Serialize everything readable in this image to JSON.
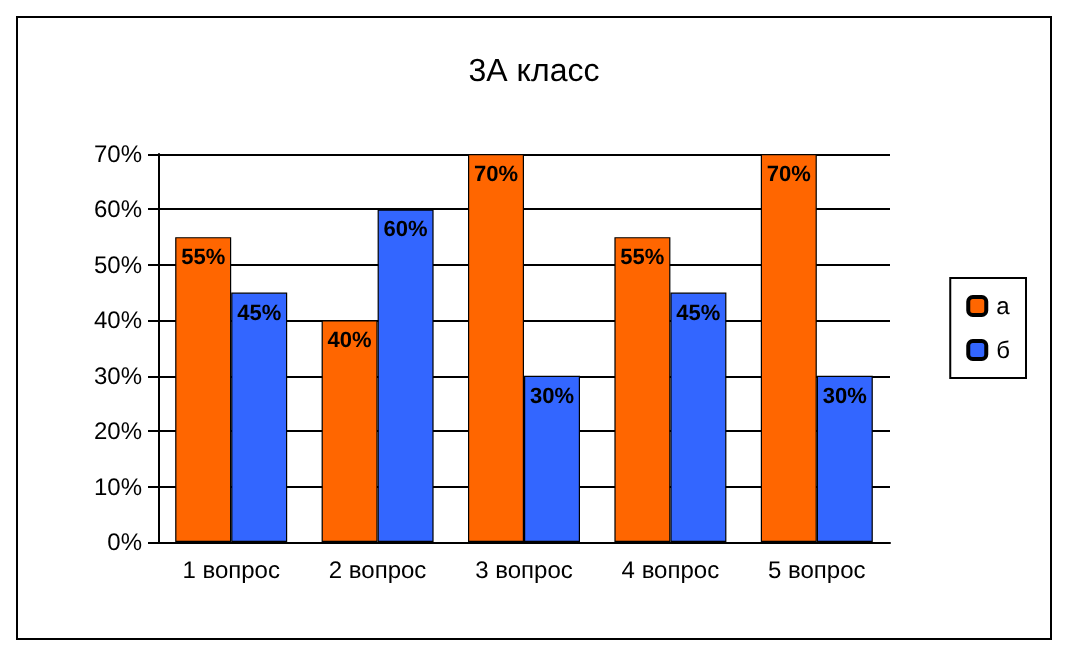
{
  "chart_data": {
    "type": "bar",
    "title": "3А класс",
    "categories": [
      "1 вопрос",
      "2 вопрос",
      "3 вопрос",
      "4 вопрос",
      "5 вопрос"
    ],
    "series": [
      {
        "name": "а",
        "color": "#ff6600",
        "values": [
          55,
          40,
          70,
          55,
          70
        ],
        "value_labels": [
          "55%",
          "40%",
          "70%",
          "55%",
          "70%"
        ]
      },
      {
        "name": "б",
        "color": "#3366ff",
        "values": [
          45,
          60,
          30,
          45,
          30
        ],
        "value_labels": [
          "45%",
          "60%",
          "30%",
          "45%",
          "30%"
        ]
      }
    ],
    "ylim": [
      0,
      70
    ],
    "yticks": [
      {
        "value": 0,
        "label": "0%"
      },
      {
        "value": 10,
        "label": "10%"
      },
      {
        "value": 20,
        "label": "20%"
      },
      {
        "value": 30,
        "label": "30%"
      },
      {
        "value": 40,
        "label": "40%"
      },
      {
        "value": 50,
        "label": "50%"
      },
      {
        "value": 60,
        "label": "60%"
      },
      {
        "value": 70,
        "label": "70%"
      }
    ],
    "grid": "y",
    "legend": "right"
  }
}
